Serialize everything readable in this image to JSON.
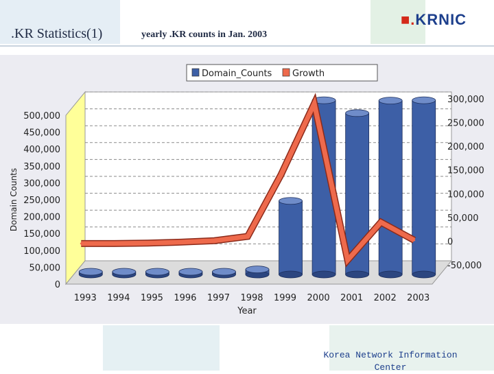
{
  "header": {
    "title": ".KR Statistics(1)",
    "subtitle": "yearly .KR counts in Jan. 2003",
    "logo_prefix": "■.",
    "logo_text": "KRNIC"
  },
  "footer": {
    "text": "Korea Network Information Center"
  },
  "colors": {
    "bar": "#3d5fa6",
    "line": "#ee6a4c",
    "backwall": "#ffffff",
    "sidewall": "#ffff99",
    "panel": "#ececf2"
  },
  "chart_data": {
    "type": "bar",
    "title": "",
    "xlabel": "Year",
    "ylabel": "Domain Counts",
    "categories": [
      "1993",
      "1994",
      "1995",
      "1996",
      "1997",
      "1998",
      "1999",
      "2000",
      "2001",
      "2002",
      "2003"
    ],
    "ylim": [
      0,
      500000
    ],
    "y2lim": [
      -50000,
      300000
    ],
    "yticks": [
      "0",
      "50,000",
      "100,000",
      "150,000",
      "200,000",
      "250,000",
      "300,000",
      "350,000",
      "400,000",
      "450,000",
      "500,000"
    ],
    "y2ticks": [
      "-50,000",
      "0",
      "50,000",
      "100,000",
      "150,000",
      "200,000",
      "250,000",
      "300,000"
    ],
    "grid": true,
    "legend_position": "top-center",
    "series": [
      {
        "name": "Domain_Counts",
        "axis": "left",
        "chart": "bar",
        "values": [
          100,
          300,
          500,
          1500,
          3000,
          15000,
          218000,
          516000,
          478000,
          515000,
          516000
        ]
      },
      {
        "name": "Growth",
        "axis": "right",
        "chart": "line",
        "values": [
          -5000,
          -5000,
          -4000,
          -2000,
          1000,
          10000,
          140000,
          290000,
          -40000,
          40000,
          2000
        ]
      }
    ]
  }
}
